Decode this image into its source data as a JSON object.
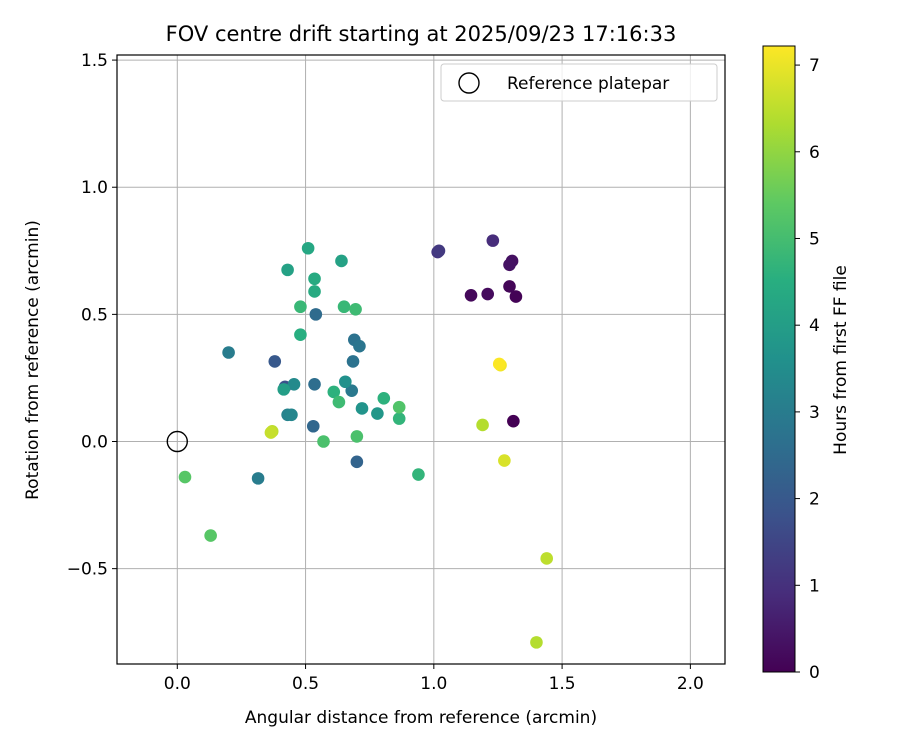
{
  "chart_data": {
    "type": "scatter",
    "title": "FOV centre drift starting at 2025/09/23 17:16:33",
    "xlabel": "Angular distance from reference (arcmin)",
    "ylabel": "Rotation from reference (arcmin)",
    "xlim": [
      -0.235,
      2.135
    ],
    "ylim": [
      -0.875,
      1.52
    ],
    "x_ticks": [
      0.0,
      0.5,
      1.0,
      1.5,
      2.0
    ],
    "x_tick_labels": [
      "0.0",
      "0.5",
      "1.0",
      "1.5",
      "2.0"
    ],
    "y_ticks": [
      -0.5,
      0.0,
      0.5,
      1.0,
      1.5
    ],
    "y_tick_labels": [
      "−0.5",
      "0.0",
      "0.5",
      "1.0",
      "1.5"
    ],
    "grid": true,
    "legend": {
      "position": "top-right",
      "label": "Reference platepar"
    },
    "reference_point": {
      "x": 0.0,
      "y": 0.0
    },
    "colorbar": {
      "label": "Hours from first FF file",
      "colormap": "viridis",
      "range": [
        0,
        7.22
      ],
      "ticks": [
        0,
        1,
        2,
        3,
        4,
        5,
        6,
        7
      ],
      "tick_labels": [
        "0",
        "1",
        "2",
        "3",
        "4",
        "5",
        "6",
        "7"
      ]
    },
    "points": [
      {
        "x": 1.31,
        "y": 0.08,
        "h": 0.0
      },
      {
        "x": 1.32,
        "y": 0.57,
        "h": 0.05
      },
      {
        "x": 1.295,
        "y": 0.61,
        "h": 0.1
      },
      {
        "x": 1.145,
        "y": 0.575,
        "h": 0.15
      },
      {
        "x": 1.21,
        "y": 0.58,
        "h": 0.2
      },
      {
        "x": 1.305,
        "y": 0.71,
        "h": 0.3
      },
      {
        "x": 1.295,
        "y": 0.695,
        "h": 0.35
      },
      {
        "x": 1.23,
        "y": 0.79,
        "h": 0.9
      },
      {
        "x": 1.015,
        "y": 0.745,
        "h": 1.1
      },
      {
        "x": 1.02,
        "y": 0.75,
        "h": 1.2
      },
      {
        "x": 0.42,
        "y": 0.215,
        "h": 1.8
      },
      {
        "x": 0.38,
        "y": 0.315,
        "h": 2.0
      },
      {
        "x": 0.7,
        "y": -0.08,
        "h": 2.3
      },
      {
        "x": 0.53,
        "y": 0.06,
        "h": 2.4
      },
      {
        "x": 0.54,
        "y": 0.5,
        "h": 2.5
      },
      {
        "x": 0.535,
        "y": 0.225,
        "h": 2.6
      },
      {
        "x": 0.69,
        "y": 0.4,
        "h": 2.7
      },
      {
        "x": 0.685,
        "y": 0.315,
        "h": 2.7
      },
      {
        "x": 0.71,
        "y": 0.375,
        "h": 2.8
      },
      {
        "x": 0.68,
        "y": 0.2,
        "h": 2.9
      },
      {
        "x": 0.2,
        "y": 0.35,
        "h": 3.0
      },
      {
        "x": 0.315,
        "y": -0.145,
        "h": 3.0
      },
      {
        "x": 0.43,
        "y": 0.105,
        "h": 3.2
      },
      {
        "x": 0.445,
        "y": 0.105,
        "h": 3.3
      },
      {
        "x": 0.455,
        "y": 0.225,
        "h": 3.4
      },
      {
        "x": 0.655,
        "y": 0.235,
        "h": 3.6
      },
      {
        "x": 0.72,
        "y": 0.13,
        "h": 3.7
      },
      {
        "x": 0.78,
        "y": 0.11,
        "h": 3.8
      },
      {
        "x": 0.415,
        "y": 0.205,
        "h": 4.0
      },
      {
        "x": 0.43,
        "y": 0.675,
        "h": 4.1
      },
      {
        "x": 0.64,
        "y": 0.71,
        "h": 4.1
      },
      {
        "x": 0.51,
        "y": 0.76,
        "h": 4.3
      },
      {
        "x": 0.535,
        "y": 0.64,
        "h": 4.4
      },
      {
        "x": 0.535,
        "y": 0.59,
        "h": 4.4
      },
      {
        "x": 0.48,
        "y": 0.42,
        "h": 4.5
      },
      {
        "x": 0.61,
        "y": 0.195,
        "h": 4.6
      },
      {
        "x": 0.805,
        "y": 0.17,
        "h": 4.6
      },
      {
        "x": 0.865,
        "y": 0.09,
        "h": 4.7
      },
      {
        "x": 0.94,
        "y": -0.13,
        "h": 4.7
      },
      {
        "x": 0.48,
        "y": 0.53,
        "h": 4.8
      },
      {
        "x": 0.65,
        "y": 0.53,
        "h": 4.8
      },
      {
        "x": 0.695,
        "y": 0.52,
        "h": 4.9
      },
      {
        "x": 0.63,
        "y": 0.155,
        "h": 4.9
      },
      {
        "x": 0.57,
        "y": 0.0,
        "h": 5.1
      },
      {
        "x": 0.7,
        "y": 0.02,
        "h": 5.1
      },
      {
        "x": 0.865,
        "y": 0.135,
        "h": 5.2
      },
      {
        "x": 0.03,
        "y": -0.14,
        "h": 5.3
      },
      {
        "x": 0.13,
        "y": -0.37,
        "h": 5.3
      },
      {
        "x": 0.37,
        "y": 0.04,
        "h": 6.5
      },
      {
        "x": 0.365,
        "y": 0.035,
        "h": 6.6
      },
      {
        "x": 1.19,
        "y": 0.065,
        "h": 6.4
      },
      {
        "x": 1.44,
        "y": -0.46,
        "h": 6.5
      },
      {
        "x": 1.4,
        "y": -0.79,
        "h": 6.4
      },
      {
        "x": 1.275,
        "y": -0.075,
        "h": 6.8
      },
      {
        "x": 1.26,
        "y": 0.3,
        "h": 7.1
      },
      {
        "x": 1.255,
        "y": 0.305,
        "h": 7.2
      }
    ]
  }
}
